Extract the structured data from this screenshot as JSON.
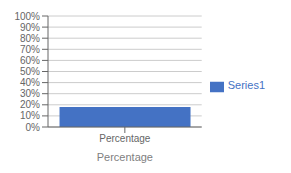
{
  "chart_data": {
    "type": "bar",
    "categories": [
      "Percentage"
    ],
    "series": [
      {
        "name": "Series1",
        "color": "#4472C4",
        "values": [
          0.18
        ]
      }
    ],
    "xlabel": "Percentage",
    "ylim": [
      0.0,
      1.0
    ],
    "yticks": [
      {
        "value": 0.0,
        "label": "0%"
      },
      {
        "value": 0.1,
        "label": "10%"
      },
      {
        "value": 0.2,
        "label": "20%"
      },
      {
        "value": 0.3,
        "label": "30%"
      },
      {
        "value": 0.4,
        "label": "40%"
      },
      {
        "value": 0.5,
        "label": "50%"
      },
      {
        "value": 0.6,
        "label": "60%"
      },
      {
        "value": 0.7,
        "label": "70%"
      },
      {
        "value": 0.8,
        "label": "80%"
      },
      {
        "value": 0.9,
        "label": "90%"
      },
      {
        "value": 1.0,
        "label": "100%"
      }
    ],
    "grid": true,
    "legend": "right"
  }
}
